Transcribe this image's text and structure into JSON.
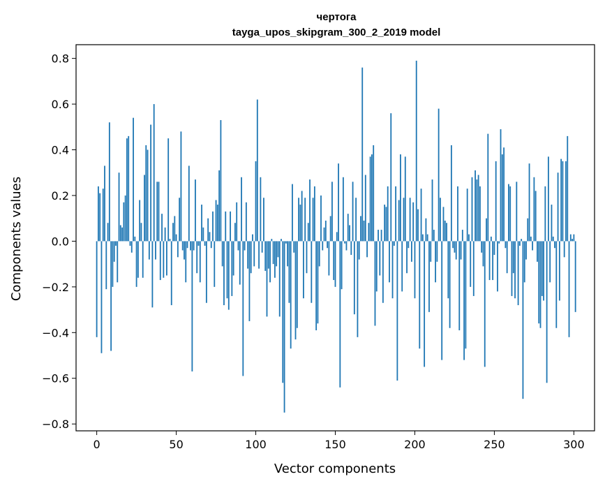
{
  "chart_data": {
    "type": "bar",
    "title": "чертога",
    "subtitle": "tayga_upos_skipgram_300_2_2019 model",
    "xlabel": "Vector components",
    "ylabel": "Components values",
    "xlim": [
      -13,
      313
    ],
    "ylim": [
      -0.83,
      0.86
    ],
    "xticks": [
      0,
      50,
      100,
      150,
      200,
      250,
      300
    ],
    "yticks": [
      -0.8,
      -0.6,
      -0.4,
      -0.2,
      0.0,
      0.2,
      0.4,
      0.6,
      0.8
    ],
    "xtick_labels": [
      "0",
      "50",
      "100",
      "150",
      "200",
      "250",
      "300"
    ],
    "ytick_labels": [
      "−0.8",
      "−0.6",
      "−0.4",
      "−0.2",
      "0.0",
      "0.2",
      "0.4",
      "0.6",
      "0.8"
    ],
    "bar_color": "#1f77b4",
    "grid": false,
    "values": [
      -0.42,
      0.24,
      0.21,
      -0.49,
      0.23,
      0.33,
      -0.21,
      0.08,
      0.52,
      -0.48,
      -0.2,
      -0.09,
      -0.02,
      -0.18,
      0.3,
      0.07,
      0.06,
      0.17,
      0.2,
      0.45,
      0.46,
      -0.02,
      -0.05,
      0.54,
      0.02,
      -0.2,
      -0.16,
      0.18,
      0.08,
      -0.16,
      0.29,
      0.42,
      0.4,
      -0.08,
      0.51,
      -0.29,
      0.6,
      -0.08,
      0.26,
      0.26,
      -0.17,
      0.12,
      -0.16,
      0.06,
      -0.15,
      0.45,
      0.01,
      -0.28,
      0.08,
      0.11,
      0.03,
      -0.07,
      0.19,
      0.48,
      -0.04,
      -0.08,
      -0.18,
      -0.03,
      0.33,
      -0.04,
      -0.57,
      -0.04,
      0.27,
      -0.14,
      -0.02,
      -0.18,
      0.16,
      0.06,
      -0.02,
      -0.27,
      0.1,
      0.04,
      -0.03,
      0.13,
      -0.2,
      0.18,
      0.16,
      0.31,
      0.53,
      -0.11,
      -0.28,
      0.13,
      -0.25,
      -0.3,
      0.13,
      -0.24,
      -0.15,
      0.08,
      0.17,
      -0.04,
      -0.19,
      0.28,
      -0.59,
      -0.04,
      0.17,
      -0.12,
      -0.35,
      -0.14,
      0.03,
      -0.11,
      0.35,
      0.62,
      -0.12,
      0.28,
      -0.05,
      0.19,
      -0.13,
      -0.33,
      -0.12,
      -0.18,
      0.01,
      -0.1,
      -0.16,
      -0.11,
      -0.07,
      -0.33,
      0.01,
      -0.62,
      -0.75,
      -0.01,
      -0.11,
      -0.27,
      -0.47,
      0.25,
      -0.05,
      -0.43,
      -0.38,
      0.19,
      0.16,
      0.22,
      -0.25,
      0.19,
      -0.14,
      0.08,
      0.27,
      -0.27,
      0.19,
      0.24,
      -0.39,
      -0.36,
      -0.11,
      0.2,
      -0.04,
      0.06,
      0.09,
      -0.03,
      -0.15,
      0.11,
      0.26,
      -0.17,
      -0.2,
      0.04,
      0.34,
      -0.64,
      -0.21,
      0.28,
      -0.01,
      -0.04,
      0.12,
      0.07,
      -0.06,
      0.26,
      -0.32,
      0.19,
      -0.42,
      -0.08,
      0.11,
      0.76,
      0.09,
      0.29,
      -0.07,
      0.08,
      0.37,
      0.38,
      0.42,
      -0.37,
      -0.22,
      0.05,
      -0.15,
      0.05,
      -0.27,
      0.16,
      0.15,
      0.24,
      -0.18,
      0.56,
      -0.25,
      -0.02,
      0.24,
      -0.61,
      0.18,
      0.38,
      -0.22,
      0.19,
      0.37,
      -0.14,
      -0.03,
      0.19,
      -0.09,
      0.17,
      -0.25,
      0.79,
      0.14,
      -0.47,
      0.23,
      0.03,
      -0.55,
      0.1,
      0.03,
      -0.31,
      -0.09,
      0.27,
      0.05,
      -0.18,
      -0.09,
      0.58,
      0.19,
      -0.52,
      0.15,
      0.09,
      0.08,
      -0.25,
      -0.38,
      0.42,
      -0.03,
      -0.05,
      -0.08,
      0.24,
      -0.39,
      -0.08,
      0.05,
      -0.52,
      -0.47,
      0.23,
      0.03,
      -0.2,
      0.28,
      -0.24,
      0.31,
      0.27,
      0.29,
      0.24,
      -0.05,
      -0.11,
      -0.55,
      0.1,
      0.47,
      -0.17,
      0.02,
      -0.17,
      -0.06,
      0.35,
      -0.22,
      -0.01,
      0.49,
      0.38,
      0.41,
      -0.03,
      -0.14,
      0.25,
      0.24,
      -0.24,
      -0.14,
      -0.25,
      0.26,
      -0.28,
      -0.02,
      0.01,
      -0.69,
      -0.18,
      -0.08,
      0.1,
      0.34,
      0.02,
      -0.04,
      0.28,
      0.22,
      -0.09,
      -0.36,
      -0.38,
      -0.24,
      -0.26,
      0.24,
      -0.62,
      0.37,
      -0.18,
      0.16,
      0.02,
      -0.03,
      -0.38,
      0.3,
      -0.26,
      0.36,
      0.35,
      -0.07,
      0.35,
      0.46,
      -0.42,
      0.03,
      0.01,
      0.03,
      -0.31
    ]
  }
}
